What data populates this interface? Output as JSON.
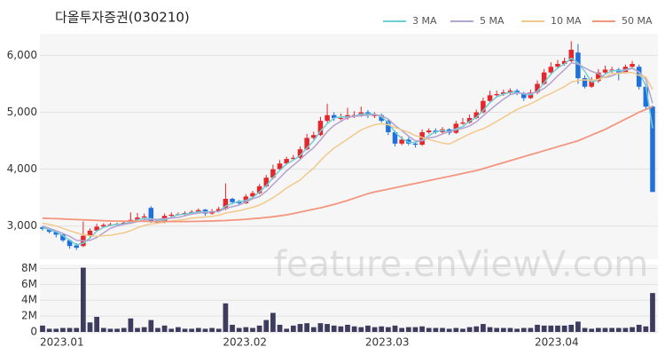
{
  "chart_data": [
    {
      "type": "candlestick",
      "title": "다올투자증권(030210)",
      "watermark": "feature.enViewV.com",
      "up_color": "#e5262b",
      "down_color": "#1f6fdc",
      "grid": true,
      "legend": "top-right",
      "ylim": [
        2450,
        6350
      ],
      "yticks": [
        {
          "value": 3000,
          "label": "3,000"
        },
        {
          "value": 4000,
          "label": "4,000"
        },
        {
          "value": 5000,
          "label": "5,000"
        },
        {
          "value": 6000,
          "label": "6,000"
        }
      ],
      "open": [
        2980,
        2950,
        2900,
        2850,
        2750,
        2660,
        2650,
        2830,
        2920,
        2990,
        3020,
        3030,
        3040,
        3060,
        3110,
        3150,
        3320,
        3100,
        3070,
        3180,
        3200,
        3210,
        3230,
        3250,
        3290,
        3220,
        3260,
        3300,
        3480,
        3440,
        3400,
        3520,
        3580,
        3700,
        3850,
        4000,
        4100,
        4180,
        4200,
        4350,
        4550,
        4600,
        4850,
        4950,
        4900,
        4900,
        4950,
        4950,
        5000,
        4950,
        4950,
        4850,
        4650,
        4450,
        4520,
        4450,
        4430,
        4650,
        4680,
        4650,
        4700,
        4640,
        4800,
        4820,
        4900,
        5000,
        5200,
        5300,
        5320,
        5350,
        5380,
        5330,
        5250,
        5350,
        5500,
        5700,
        5800,
        5850,
        5900,
        6050,
        5600,
        5450,
        5550,
        5700,
        5750,
        5750,
        5700,
        5800,
        5800,
        5450,
        5100
      ],
      "high": [
        3000,
        2970,
        2920,
        2870,
        2770,
        2700,
        3080,
        2960,
        3040,
        3050,
        3060,
        3060,
        3090,
        3240,
        3230,
        3220,
        3350,
        3120,
        3220,
        3240,
        3240,
        3260,
        3280,
        3310,
        3300,
        3300,
        3340,
        3750,
        3500,
        3460,
        3560,
        3620,
        3740,
        3900,
        4080,
        4160,
        4220,
        4250,
        4400,
        4620,
        4660,
        4920,
        5150,
        5000,
        4980,
        5080,
        5020,
        5100,
        5040,
        5000,
        4980,
        4870,
        4680,
        4580,
        4560,
        4480,
        4700,
        4720,
        4720,
        4740,
        4720,
        4850,
        4900,
        4960,
        5050,
        5260,
        5380,
        5380,
        5400,
        5420,
        5410,
        5360,
        5400,
        5560,
        5760,
        5880,
        5920,
        5960,
        6250,
        6200,
        5650,
        5620,
        5760,
        5820,
        5800,
        5780,
        5840,
        5900,
        5840,
        5500,
        5120
      ],
      "low": [
        2920,
        2870,
        2800,
        2720,
        2600,
        2580,
        2630,
        2800,
        2900,
        2970,
        3000,
        3010,
        3020,
        3040,
        3090,
        3120,
        3060,
        3040,
        3050,
        3160,
        3180,
        3190,
        3200,
        3230,
        3180,
        3200,
        3240,
        3280,
        3380,
        3370,
        3390,
        3500,
        3560,
        3680,
        3820,
        3980,
        4080,
        4150,
        4180,
        4330,
        4520,
        4580,
        4820,
        4850,
        4860,
        4870,
        4900,
        4920,
        4900,
        4900,
        4820,
        4600,
        4400,
        4420,
        4420,
        4380,
        4410,
        4620,
        4620,
        4620,
        4600,
        4620,
        4780,
        4800,
        4880,
        4980,
        5180,
        5280,
        5290,
        5320,
        5300,
        5200,
        5230,
        5320,
        5480,
        5660,
        5760,
        5820,
        5880,
        5500,
        5420,
        5430,
        5520,
        5660,
        5680,
        5560,
        5680,
        5780,
        5400,
        5050,
        3600
      ],
      "close": [
        2950,
        2900,
        2850,
        2750,
        2650,
        2620,
        2830,
        2920,
        2990,
        3020,
        3030,
        3040,
        3060,
        3110,
        3150,
        3170,
        3080,
        3060,
        3180,
        3200,
        3210,
        3230,
        3250,
        3280,
        3220,
        3260,
        3300,
        3480,
        3420,
        3400,
        3520,
        3580,
        3700,
        3850,
        4000,
        4100,
        4180,
        4200,
        4350,
        4550,
        4600,
        4850,
        4950,
        4900,
        4900,
        4950,
        4950,
        5000,
        4950,
        4950,
        4850,
        4650,
        4450,
        4520,
        4450,
        4430,
        4650,
        4680,
        4650,
        4700,
        4640,
        4800,
        4820,
        4900,
        5000,
        5200,
        5300,
        5320,
        5350,
        5380,
        5330,
        5250,
        5350,
        5500,
        5700,
        5800,
        5850,
        5900,
        6100,
        5600,
        5450,
        5550,
        5700,
        5750,
        5750,
        5700,
        5800,
        5850,
        5450,
        5100,
        3600
      ],
      "series": [
        {
          "name": "3 MA",
          "color": "#6ccfd6",
          "values": [
            2970,
            2940,
            2900,
            2830,
            2750,
            2670,
            2700,
            2790,
            2910,
            2980,
            3010,
            3030,
            3040,
            3070,
            3110,
            3140,
            3130,
            3100,
            3110,
            3150,
            3200,
            3210,
            3230,
            3250,
            3250,
            3250,
            3260,
            3350,
            3400,
            3430,
            3450,
            3500,
            3600,
            3710,
            3850,
            3980,
            4090,
            4160,
            4240,
            4370,
            4500,
            4670,
            4800,
            4900,
            4920,
            4920,
            4930,
            4970,
            4970,
            4970,
            4920,
            4820,
            4650,
            4540,
            4470,
            4470,
            4510,
            4590,
            4660,
            4680,
            4660,
            4710,
            4750,
            4840,
            4910,
            5030,
            5170,
            5270,
            5320,
            5350,
            5350,
            5320,
            5310,
            5370,
            5520,
            5670,
            5780,
            5850,
            5950,
            5870,
            5720,
            5530,
            5570,
            5670,
            5730,
            5730,
            5750,
            5780,
            5700,
            5470,
            4720
          ]
        },
        {
          "name": "5 MA",
          "color": "#b4a2cf",
          "values": [
            3000,
            2960,
            2920,
            2870,
            2820,
            2750,
            2740,
            2750,
            2800,
            2880,
            2960,
            3000,
            3030,
            3050,
            3080,
            3110,
            3120,
            3120,
            3130,
            3140,
            3150,
            3180,
            3210,
            3230,
            3240,
            3250,
            3260,
            3310,
            3340,
            3370,
            3420,
            3480,
            3520,
            3610,
            3730,
            3850,
            3970,
            4070,
            4170,
            4280,
            4380,
            4510,
            4660,
            4770,
            4840,
            4910,
            4930,
            4940,
            4950,
            4960,
            4940,
            4880,
            4770,
            4680,
            4580,
            4500,
            4500,
            4550,
            4570,
            4620,
            4660,
            4690,
            4720,
            4760,
            4830,
            4940,
            5040,
            5140,
            5230,
            5310,
            5340,
            5330,
            5330,
            5360,
            5420,
            5520,
            5640,
            5750,
            5870,
            5850,
            5780,
            5720,
            5680,
            5610,
            5640,
            5690,
            5740,
            5770,
            5710,
            5580,
            5160
          ]
        },
        {
          "name": "10 MA",
          "color": "#f2c98d",
          "values": [
            3050,
            3030,
            3000,
            2960,
            2920,
            2880,
            2850,
            2830,
            2820,
            2830,
            2840,
            2860,
            2880,
            2920,
            2970,
            3010,
            3040,
            3050,
            3070,
            3090,
            3100,
            3120,
            3140,
            3150,
            3160,
            3170,
            3190,
            3230,
            3250,
            3270,
            3300,
            3330,
            3370,
            3430,
            3500,
            3580,
            3670,
            3740,
            3810,
            3920,
            4020,
            4150,
            4270,
            4370,
            4450,
            4530,
            4610,
            4690,
            4740,
            4780,
            4800,
            4780,
            4730,
            4690,
            4650,
            4590,
            4560,
            4520,
            4490,
            4460,
            4440,
            4500,
            4560,
            4620,
            4670,
            4710,
            4770,
            4840,
            4910,
            4980,
            5050,
            5100,
            5150,
            5210,
            5280,
            5330,
            5390,
            5450,
            5530,
            5560,
            5570,
            5560,
            5580,
            5620,
            5680,
            5680,
            5700,
            5700,
            5650,
            5620,
            5400
          ]
        },
        {
          "name": "50 MA",
          "color": "#f4957e",
          "values": [
            3140,
            3135,
            3130,
            3125,
            3120,
            3115,
            3110,
            3105,
            3100,
            3095,
            3090,
            3088,
            3086,
            3085,
            3084,
            3083,
            3082,
            3081,
            3080,
            3080,
            3080,
            3081,
            3082,
            3084,
            3086,
            3090,
            3094,
            3098,
            3105,
            3112,
            3120,
            3130,
            3140,
            3152,
            3165,
            3180,
            3198,
            3220,
            3245,
            3270,
            3295,
            3320,
            3350,
            3380,
            3415,
            3450,
            3490,
            3530,
            3570,
            3600,
            3625,
            3650,
            3675,
            3700,
            3725,
            3750,
            3775,
            3800,
            3825,
            3850,
            3875,
            3900,
            3925,
            3950,
            3975,
            4010,
            4045,
            4080,
            4115,
            4150,
            4185,
            4220,
            4255,
            4290,
            4325,
            4360,
            4395,
            4430,
            4465,
            4500,
            4550,
            4600,
            4650,
            4700,
            4760,
            4820,
            4880,
            4940,
            5000,
            5050,
            5100
          ]
        }
      ]
    },
    {
      "type": "bar",
      "color": "#3e3c5e",
      "grid": true,
      "ylim": [
        0,
        8500000
      ],
      "yticks": [
        0,
        {
          "value": 2000000,
          "label": "2M"
        },
        {
          "value": 4000000,
          "label": "4M"
        },
        {
          "value": 6000000,
          "label": "6M"
        },
        {
          "value": 8000000,
          "label": "8M"
        }
      ],
      "categories": [
        "2023.01",
        null,
        null,
        null,
        null,
        null,
        null,
        null,
        null,
        null,
        null,
        null,
        null,
        null,
        null,
        null,
        null,
        null,
        null,
        null,
        null,
        null,
        null,
        null,
        null,
        null,
        null,
        "2023.02",
        null,
        null,
        null,
        null,
        null,
        null,
        null,
        null,
        null,
        null,
        null,
        null,
        null,
        null,
        null,
        null,
        null,
        null,
        null,
        null,
        "2023.03",
        null,
        null,
        null,
        null,
        null,
        null,
        null,
        null,
        null,
        null,
        null,
        null,
        null,
        null,
        null,
        null,
        null,
        null,
        null,
        null,
        null,
        null,
        null,
        null,
        "2023.04",
        null,
        null,
        null,
        null,
        null,
        null,
        null,
        null,
        null,
        null,
        null,
        null,
        null,
        null,
        null,
        null,
        null
      ],
      "values": [
        800000,
        400000,
        400000,
        500000,
        500000,
        500000,
        8100000,
        1200000,
        1900000,
        500000,
        400000,
        400000,
        500000,
        1700000,
        500000,
        600000,
        1500000,
        500000,
        800000,
        400000,
        600000,
        400000,
        400000,
        500000,
        400000,
        500000,
        400000,
        3600000,
        900000,
        500000,
        600000,
        500000,
        800000,
        1500000,
        2400000,
        900000,
        400000,
        800000,
        1000000,
        1100000,
        600000,
        1100000,
        1000000,
        800000,
        700000,
        900000,
        700000,
        600000,
        800000,
        600000,
        700000,
        600000,
        800000,
        500000,
        600000,
        600000,
        700000,
        500000,
        500000,
        500000,
        400000,
        500000,
        400000,
        600000,
        700000,
        1000000,
        600000,
        500000,
        500000,
        500000,
        400000,
        500000,
        500000,
        900000,
        800000,
        800000,
        800000,
        800000,
        900000,
        1300000,
        500000,
        400000,
        500000,
        500000,
        500000,
        500000,
        500000,
        600000,
        900000,
        700000,
        4900000
      ]
    }
  ]
}
